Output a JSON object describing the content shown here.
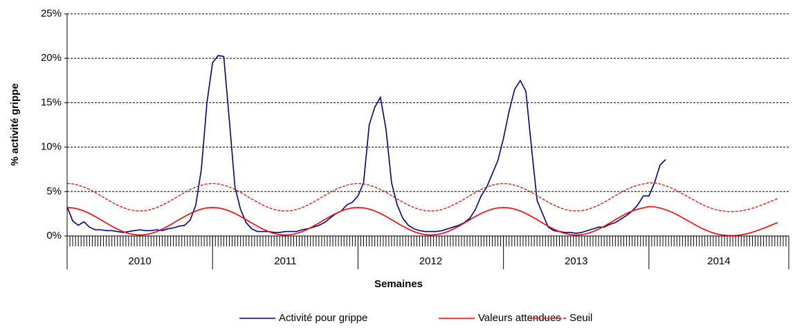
{
  "chart_data": {
    "type": "line",
    "y_label": "% activité grippe",
    "x_label": "Semaines",
    "xlim": [
      0,
      258
    ],
    "ylim": [
      0,
      25
    ],
    "yticks": [
      {
        "value": 0,
        "label": "0%"
      },
      {
        "value": 5,
        "label": "5%"
      },
      {
        "value": 10,
        "label": "10%"
      },
      {
        "value": 15,
        "label": "15%"
      },
      {
        "value": 20,
        "label": "20%"
      },
      {
        "value": 25,
        "label": "25%"
      }
    ],
    "xticks": [
      {
        "value": 26,
        "label": "2010"
      },
      {
        "value": 78,
        "label": "2011"
      },
      {
        "value": 130,
        "label": "2012"
      },
      {
        "value": 182,
        "label": "2013"
      },
      {
        "value": 233,
        "label": "2014"
      }
    ],
    "xgroup_bounds": [
      0,
      52,
      104,
      156,
      208,
      258
    ],
    "xminor_step": 1,
    "grid": true,
    "legend": "bottom",
    "x": [
      0,
      2,
      4,
      6,
      8,
      10,
      12,
      14,
      16,
      18,
      20,
      22,
      24,
      26,
      28,
      30,
      32,
      34,
      36,
      38,
      40,
      42,
      44,
      46,
      48,
      50,
      52,
      54,
      56,
      58,
      60,
      62,
      64,
      66,
      68,
      70,
      72,
      74,
      76,
      78,
      80,
      82,
      84,
      86,
      88,
      90,
      92,
      94,
      96,
      98,
      100,
      102,
      104,
      106,
      108,
      110,
      112,
      114,
      116,
      118,
      120,
      122,
      124,
      126,
      128,
      130,
      132,
      134,
      136,
      138,
      140,
      142,
      144,
      146,
      148,
      150,
      152,
      154,
      156,
      158,
      160,
      162,
      164,
      166,
      168,
      170,
      172,
      174,
      176,
      178,
      180,
      182,
      184,
      186,
      188,
      190,
      192,
      194,
      196,
      198,
      200,
      202,
      204,
      206,
      208,
      210,
      212,
      214,
      216,
      218,
      220,
      222,
      224,
      226,
      228,
      230,
      232,
      234,
      236,
      238,
      240,
      242,
      244,
      246,
      248,
      250,
      252,
      254
    ],
    "series": [
      {
        "name": "Activité pour grippe",
        "color": "#000080",
        "dash": false,
        "values": [
          3.3,
          1.7,
          1.2,
          1.6,
          1.0,
          0.7,
          0.7,
          0.6,
          0.6,
          0.5,
          0.4,
          0.5,
          0.6,
          0.7,
          0.6,
          0.6,
          0.7,
          0.6,
          0.8,
          0.9,
          1.1,
          1.2,
          1.8,
          3.5,
          7.5,
          15,
          19.5,
          20.3,
          20.2,
          13,
          5.5,
          3,
          1.5,
          0.8,
          0.5,
          0.5,
          0.5,
          0.4,
          0.4,
          0.5,
          0.5,
          0.5,
          0.7,
          0.8,
          1.0,
          1.2,
          1.5,
          2.0,
          2.5,
          2.8,
          3.5,
          3.8,
          4.5,
          6.0,
          12.5,
          14.5,
          15.6,
          12,
          6,
          3.5,
          2,
          1.2,
          0.8,
          0.6,
          0.5,
          0.5,
          0.5,
          0.6,
          0.8,
          1.0,
          1.2,
          1.5,
          2.0,
          3.0,
          4.5,
          5.5,
          7,
          8.5,
          11,
          14,
          16.5,
          17.5,
          16.3,
          10,
          4,
          2.5,
          1.0,
          0.6,
          0.5,
          0.4,
          0.4,
          0.3,
          0.4,
          0.6,
          0.8,
          1.0,
          1.0,
          1.3,
          1.5,
          1.9,
          2.3,
          2.8,
          3.5,
          4.5,
          4.5,
          6.0,
          8.0,
          8.6,
          null,
          null,
          null,
          null,
          null,
          null,
          null,
          null,
          null,
          null,
          null,
          null,
          null,
          null,
          null,
          null,
          null,
          null,
          null,
          null
        ]
      },
      {
        "name": "Valeurs attendues",
        "color": "#ff0000",
        "dash": false,
        "values": [
          3.2,
          3.16,
          3.02,
          2.81,
          2.53,
          2.2,
          1.84,
          1.46,
          1.1,
          0.77,
          0.49,
          0.28,
          0.15,
          0.1,
          0.15,
          0.28,
          0.49,
          0.77,
          1.1,
          1.46,
          1.84,
          2.2,
          2.53,
          2.81,
          3.02,
          3.16,
          3.2,
          3.16,
          3.02,
          2.81,
          2.53,
          2.2,
          1.84,
          1.46,
          1.1,
          0.77,
          0.49,
          0.28,
          0.15,
          0.1,
          0.15,
          0.28,
          0.49,
          0.77,
          1.1,
          1.46,
          1.84,
          2.2,
          2.53,
          2.81,
          3.02,
          3.16,
          3.2,
          3.16,
          3.02,
          2.81,
          2.53,
          2.2,
          1.84,
          1.46,
          1.1,
          0.77,
          0.49,
          0.28,
          0.15,
          0.1,
          0.15,
          0.28,
          0.49,
          0.77,
          1.1,
          1.46,
          1.84,
          2.2,
          2.53,
          2.81,
          3.02,
          3.16,
          3.2,
          3.16,
          3.02,
          2.81,
          2.53,
          2.2,
          1.84,
          1.46,
          1.1,
          0.77,
          0.49,
          0.28,
          0.15,
          0.1,
          0.15,
          0.28,
          0.49,
          0.77,
          1.1,
          1.46,
          1.84,
          2.2,
          2.53,
          2.81,
          3.02,
          3.16,
          3.3,
          3.27,
          3.15,
          2.95,
          2.7,
          2.4,
          2.05,
          1.7,
          1.35,
          1.0,
          0.7,
          0.45,
          0.25,
          0.12,
          0.06,
          0.05,
          0.08,
          0.18,
          0.33,
          0.52,
          0.75,
          1.0,
          1.25,
          1.5
        ]
      },
      {
        "name": "Seuil",
        "color": "#ff0000",
        "dash": true,
        "values": [
          5.9,
          5.86,
          5.72,
          5.51,
          5.23,
          4.9,
          4.54,
          4.16,
          3.8,
          3.47,
          3.19,
          2.98,
          2.85,
          2.8,
          2.85,
          2.98,
          3.19,
          3.47,
          3.8,
          4.16,
          4.54,
          4.9,
          5.23,
          5.51,
          5.72,
          5.86,
          5.9,
          5.86,
          5.72,
          5.51,
          5.23,
          4.9,
          4.54,
          4.16,
          3.8,
          3.47,
          3.19,
          2.98,
          2.85,
          2.8,
          2.85,
          2.98,
          3.19,
          3.47,
          3.8,
          4.16,
          4.54,
          4.9,
          5.23,
          5.51,
          5.72,
          5.86,
          5.9,
          5.86,
          5.72,
          5.51,
          5.23,
          4.9,
          4.54,
          4.16,
          3.8,
          3.47,
          3.19,
          2.98,
          2.85,
          2.8,
          2.85,
          2.98,
          3.19,
          3.47,
          3.8,
          4.16,
          4.54,
          4.9,
          5.23,
          5.51,
          5.72,
          5.86,
          5.9,
          5.86,
          5.72,
          5.51,
          5.23,
          4.9,
          4.54,
          4.16,
          3.8,
          3.47,
          3.19,
          2.98,
          2.85,
          2.8,
          2.85,
          2.98,
          3.19,
          3.47,
          3.8,
          4.16,
          4.54,
          4.9,
          5.23,
          5.51,
          5.72,
          5.86,
          6.0,
          5.97,
          5.85,
          5.65,
          5.4,
          5.1,
          4.75,
          4.4,
          4.05,
          3.7,
          3.4,
          3.15,
          2.95,
          2.82,
          2.76,
          2.75,
          2.78,
          2.88,
          3.03,
          3.22,
          3.45,
          3.7,
          3.95,
          4.2
        ]
      }
    ]
  }
}
